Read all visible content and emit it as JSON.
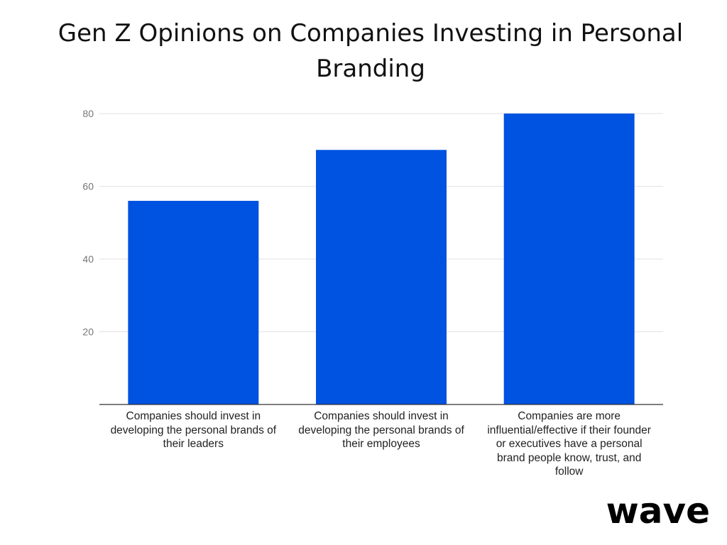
{
  "chart_data": {
    "type": "bar",
    "title": "Gen Z Opinions on Companies Investing in Personal Branding",
    "categories": [
      "Companies should invest in developing the personal brands of their leaders",
      "Companies should invest in developing the personal brands of their employees",
      "Companies are more influential/effective if their founder or executives have a personal brand people know, trust, and follow"
    ],
    "values": [
      56,
      70,
      80
    ],
    "ylim": [
      0,
      80
    ],
    "yticks": [
      "20",
      "40",
      "60",
      "80"
    ],
    "xlabel": "",
    "ylabel": "",
    "grid": true,
    "legend": "none",
    "bar_color": "#0052E0"
  },
  "brand": {
    "logo_text": "wave"
  }
}
